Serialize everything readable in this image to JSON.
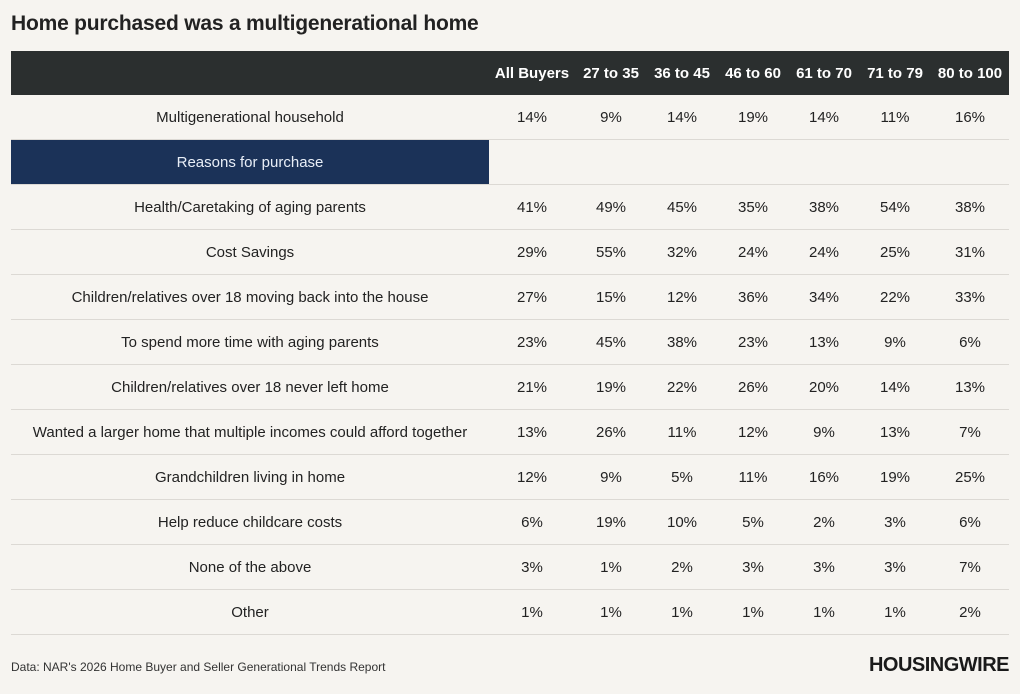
{
  "title": "Home purchased was a multigenerational home",
  "chart_data": {
    "type": "table",
    "columns": [
      "All Buyers",
      "27 to 35",
      "36 to 45",
      "46 to 60",
      "61 to 70",
      "71 to 79",
      "80 to 100"
    ],
    "top_row": {
      "label": "Multigenerational household",
      "values": [
        "14%",
        "9%",
        "14%",
        "19%",
        "14%",
        "11%",
        "16%"
      ]
    },
    "section_label": "Reasons for purchase",
    "rows": [
      {
        "label": "Health/Caretaking of aging parents",
        "values": [
          "41%",
          "49%",
          "45%",
          "35%",
          "38%",
          "54%",
          "38%"
        ]
      },
      {
        "label": "Cost Savings",
        "values": [
          "29%",
          "55%",
          "32%",
          "24%",
          "24%",
          "25%",
          "31%"
        ]
      },
      {
        "label": "Children/relatives over 18 moving back into the house",
        "values": [
          "27%",
          "15%",
          "12%",
          "36%",
          "34%",
          "22%",
          "33%"
        ]
      },
      {
        "label": "To spend more time with aging parents",
        "values": [
          "23%",
          "45%",
          "38%",
          "23%",
          "13%",
          "9%",
          "6%"
        ]
      },
      {
        "label": "Children/relatives over 18 never left home",
        "values": [
          "21%",
          "19%",
          "22%",
          "26%",
          "20%",
          "14%",
          "13%"
        ]
      },
      {
        "label": "Wanted a larger home that multiple incomes could afford together",
        "values": [
          "13%",
          "26%",
          "11%",
          "12%",
          "9%",
          "13%",
          "7%"
        ]
      },
      {
        "label": "Grandchildren living in home",
        "values": [
          "12%",
          "9%",
          "5%",
          "11%",
          "16%",
          "19%",
          "25%"
        ]
      },
      {
        "label": "Help reduce childcare costs",
        "values": [
          "6%",
          "19%",
          "10%",
          "5%",
          "2%",
          "3%",
          "6%"
        ]
      },
      {
        "label": "None of the above",
        "values": [
          "3%",
          "1%",
          "2%",
          "3%",
          "3%",
          "3%",
          "7%"
        ]
      },
      {
        "label": "Other",
        "values": [
          "1%",
          "1%",
          "1%",
          "1%",
          "1%",
          "1%",
          "2%"
        ]
      }
    ]
  },
  "footer": {
    "source": "Data: NAR's 2026 Home Buyer and Seller Generational Trends Report",
    "logo": "HOUSINGWIRE"
  }
}
